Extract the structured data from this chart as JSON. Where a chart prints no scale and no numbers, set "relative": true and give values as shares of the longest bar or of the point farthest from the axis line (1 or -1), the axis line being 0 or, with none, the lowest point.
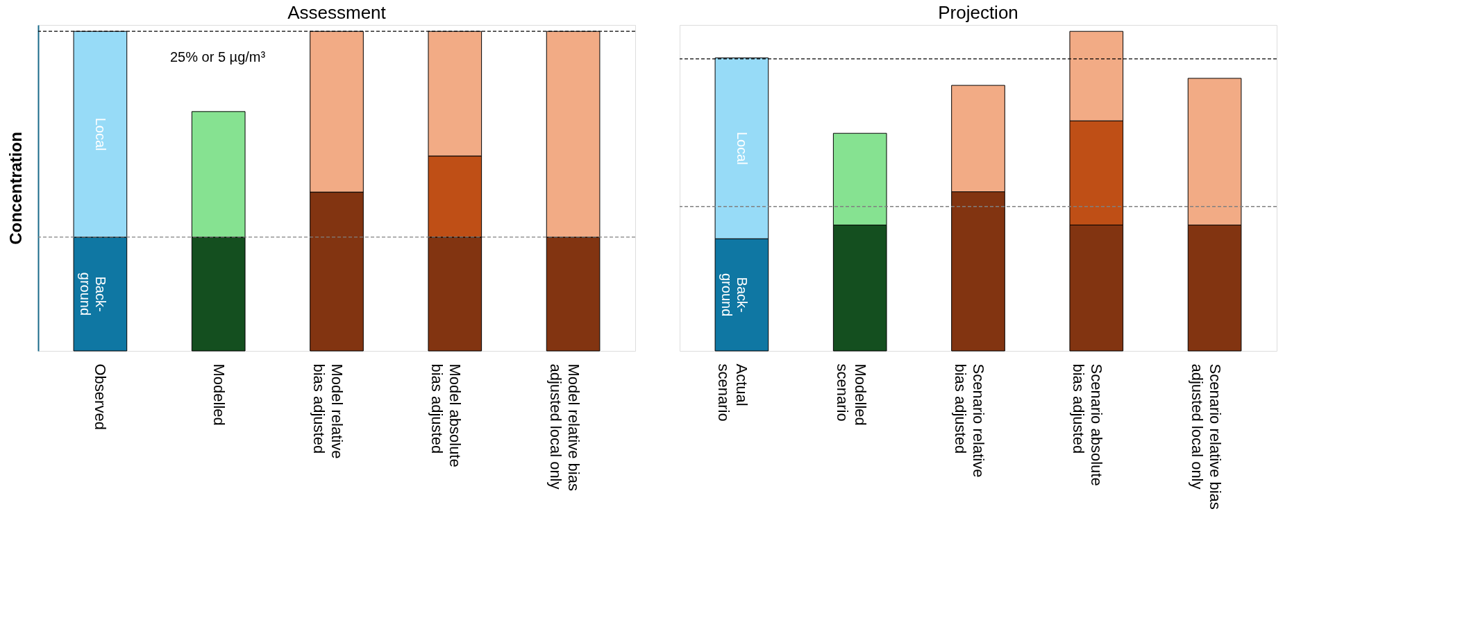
{
  "chart_data": [
    {
      "type": "bar",
      "title": "Assessment",
      "ylabel": "Concentration",
      "stacked": true,
      "relative": true,
      "categories": [
        "Observed",
        "Modelled",
        "Model relative\nbias adjusted",
        "Model absolute\nbias adjusted",
        "Model relative bias\nadjusted local only"
      ],
      "series": [
        {
          "colors": [
            "#0f77a3",
            "#144f1f",
            "#823411",
            "#823411",
            "#823411"
          ],
          "values": [
            0.356,
            0.356,
            0.497,
            0.356,
            0.356
          ]
        },
        {
          "colors": [
            "#97dbf7",
            "#86e291",
            "#f2ab85",
            "#bf4f16",
            "#f2ab85"
          ],
          "values": [
            0.644,
            0.393,
            0.503,
            0.254,
            0.644
          ]
        },
        {
          "colors": [
            null,
            null,
            null,
            "#f2ab85",
            null
          ],
          "values": [
            null,
            null,
            null,
            0.39,
            null
          ]
        }
      ],
      "ref_lines": [
        {
          "axis": "y",
          "value": 1.0,
          "label": "25% or 5 µg/m³",
          "color": "#000000",
          "line_style": "dashed"
        },
        {
          "axis": "y",
          "value": 0.356,
          "color": "#808080",
          "line_style": "dashed"
        }
      ],
      "annotations": [
        "Back-\nground",
        "Local"
      ]
    },
    {
      "type": "bar",
      "title": "Projection",
      "stacked": true,
      "relative": true,
      "categories": [
        "Actual\nscenario",
        "Modelled\nscenario",
        "Scenario relative\nbias adjusted",
        "Scenario absolute\nbias adjusted",
        "Scenario relative bias\nadjusted local only"
      ],
      "series": [
        {
          "colors": [
            "#0f77a3",
            "#144f1f",
            "#823411",
            "#823411",
            "#823411"
          ],
          "values": [
            0.351,
            0.394,
            0.498,
            0.394,
            0.394
          ]
        },
        {
          "colors": [
            "#97dbf7",
            "#86e291",
            "#f2ab85",
            "#bf4f16",
            "#f2ab85"
          ],
          "values": [
            0.566,
            0.287,
            0.333,
            0.326,
            0.459
          ]
        },
        {
          "colors": [
            null,
            null,
            null,
            "#f2ab85",
            null
          ],
          "values": [
            null,
            null,
            null,
            0.28,
            null
          ]
        }
      ],
      "ref_lines": [
        {
          "axis": "y",
          "value": 0.914,
          "color": "#000000",
          "line_style": "dashed"
        },
        {
          "axis": "y",
          "value": 0.452,
          "color": "#808080",
          "line_style": "dashed"
        }
      ],
      "annotations": [
        "Back-\nground",
        "Local"
      ]
    }
  ]
}
